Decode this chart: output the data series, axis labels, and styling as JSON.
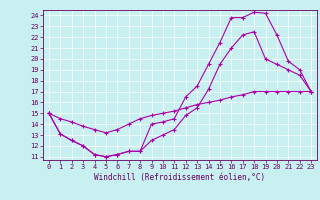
{
  "xlabel": "Windchill (Refroidissement éolien,°C)",
  "bg_color": "#c8f0f0",
  "line_color": "#aa00aa",
  "grid_color": "#ffffff",
  "xlim": [
    -0.5,
    23.5
  ],
  "ylim": [
    10.7,
    24.5
  ],
  "xticks": [
    0,
    1,
    2,
    3,
    4,
    5,
    6,
    7,
    8,
    9,
    10,
    11,
    12,
    13,
    14,
    15,
    16,
    17,
    18,
    19,
    20,
    21,
    22,
    23
  ],
  "yticks": [
    11,
    12,
    13,
    14,
    15,
    16,
    17,
    18,
    19,
    20,
    21,
    22,
    23,
    24
  ],
  "line1_x": [
    0,
    1,
    2,
    3,
    4,
    5,
    6,
    7,
    8,
    9,
    10,
    11,
    12,
    13,
    14,
    15,
    16,
    17,
    18,
    19,
    20,
    21,
    22,
    23
  ],
  "line1_y": [
    15,
    13.1,
    12.5,
    12.0,
    11.2,
    11.0,
    11.2,
    11.5,
    11.5,
    14.0,
    14.2,
    14.5,
    16.5,
    17.5,
    19.5,
    21.5,
    23.8,
    23.8,
    24.3,
    24.2,
    22.2,
    19.8,
    19.0,
    17.0
  ],
  "line2_x": [
    0,
    1,
    2,
    3,
    4,
    5,
    6,
    7,
    8,
    9,
    10,
    11,
    12,
    13,
    14,
    15,
    16,
    17,
    18,
    19,
    20,
    21,
    22,
    23
  ],
  "line2_y": [
    15,
    13.1,
    12.5,
    12.0,
    11.2,
    11.0,
    11.2,
    11.5,
    11.5,
    12.5,
    13.0,
    13.5,
    14.8,
    15.5,
    17.2,
    19.5,
    21.0,
    22.2,
    22.5,
    20.0,
    19.5,
    19.0,
    18.5,
    17.0
  ],
  "line3_x": [
    0,
    1,
    2,
    3,
    4,
    5,
    6,
    7,
    8,
    9,
    10,
    11,
    12,
    13,
    14,
    15,
    16,
    17,
    18,
    19,
    20,
    21,
    22,
    23
  ],
  "line3_y": [
    15.0,
    14.5,
    14.2,
    13.8,
    13.5,
    13.2,
    13.5,
    14.0,
    14.5,
    14.8,
    15.0,
    15.2,
    15.5,
    15.8,
    16.0,
    16.2,
    16.5,
    16.7,
    17.0,
    17.0,
    17.0,
    17.0,
    17.0,
    17.0
  ]
}
